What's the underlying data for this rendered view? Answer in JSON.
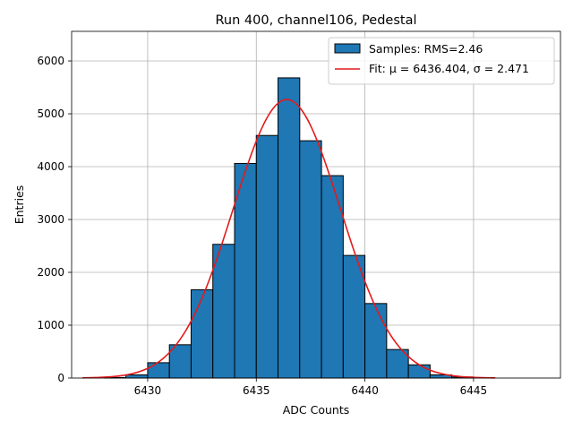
{
  "chart_data": {
    "type": "bar",
    "title": "Run 400, channel106, Pedestal",
    "xlabel": "ADC Counts",
    "ylabel": "Entries",
    "xlim": [
      6426.5,
      6449
    ],
    "ylim": [
      0,
      6560
    ],
    "xticks": [
      6430,
      6435,
      6440,
      6445
    ],
    "yticks": [
      0,
      1000,
      2000,
      3000,
      4000,
      5000,
      6000
    ],
    "grid": true,
    "legend_position": "top-right",
    "histogram": {
      "name": "Samples: RMS=2.46",
      "bin_edges": [
        6427,
        6428,
        6429,
        6430,
        6431,
        6432,
        6433,
        6434,
        6435,
        6436,
        6437,
        6438,
        6439,
        6440,
        6441,
        6442,
        6443,
        6444,
        6445,
        6446,
        6447,
        6448
      ],
      "values": [
        0,
        10,
        60,
        290,
        630,
        1670,
        2530,
        4060,
        4590,
        5680,
        4490,
        3830,
        2320,
        1410,
        540,
        250,
        60,
        20,
        0,
        0,
        0
      ],
      "color": "#1f77b4",
      "edge_color": "#000000"
    },
    "fit": {
      "name": "Fit: μ = 6436.404, σ = 2.471",
      "mu": 6436.404,
      "sigma": 2.471,
      "amplitude": 5270,
      "x_range": [
        6427,
        6446
      ],
      "color": "#e41a1c"
    }
  }
}
